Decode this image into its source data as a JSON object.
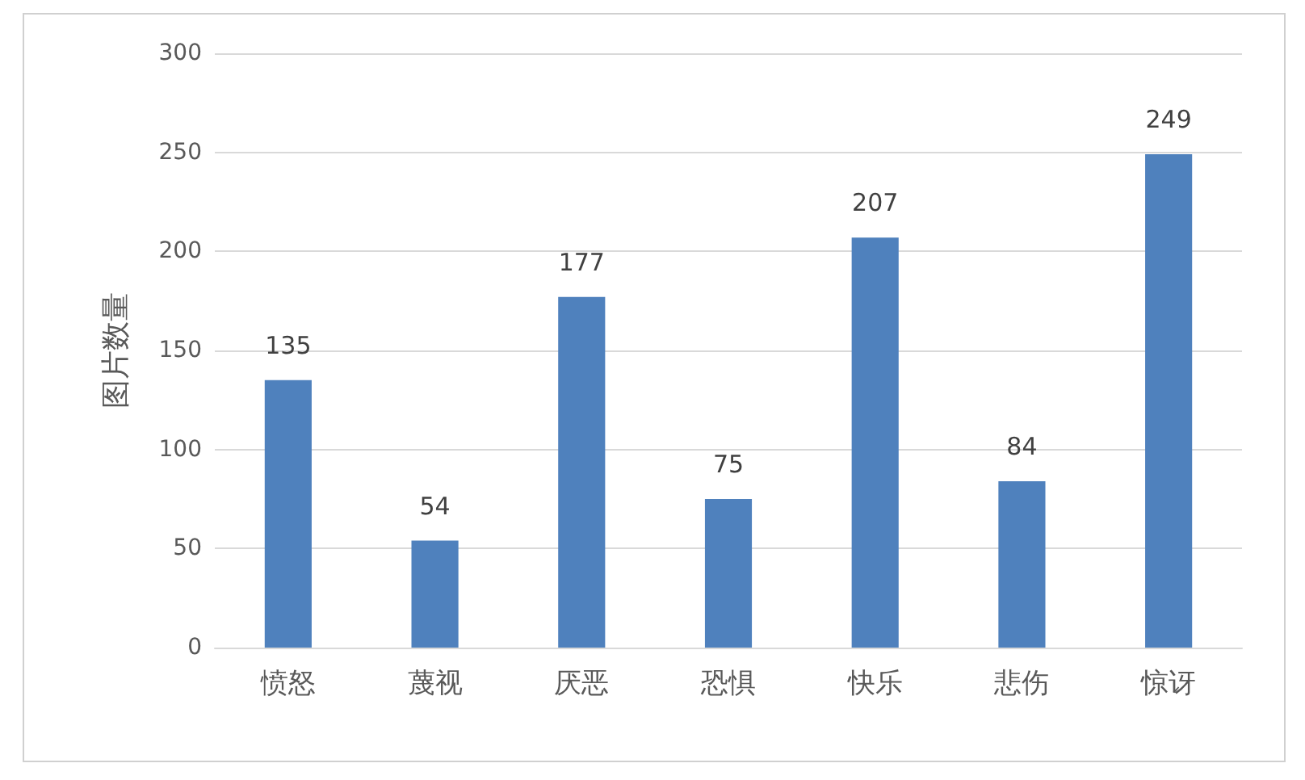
{
  "chart_data": {
    "type": "bar",
    "ylabel": "图片数量",
    "categories": [
      "愤怒",
      "蔑视",
      "厌恶",
      "恐惧",
      "快乐",
      "悲伤",
      "惊讶"
    ],
    "values": [
      135,
      54,
      177,
      75,
      207,
      84,
      249
    ],
    "color": "#4f81bd",
    "ylim": [
      0,
      300
    ],
    "yticks": [
      0,
      50,
      100,
      150,
      200,
      250,
      300
    ],
    "grid": "y",
    "data_labels": true
  }
}
